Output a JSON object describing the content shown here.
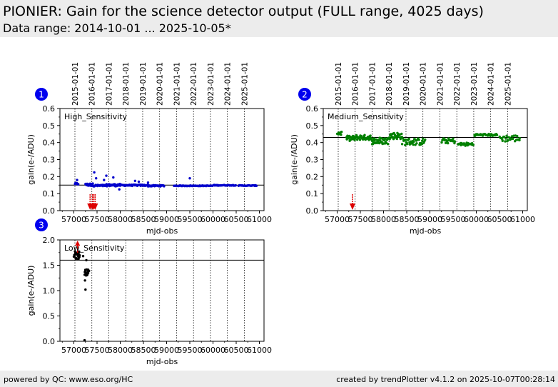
{
  "header": {
    "title": "PIONIER: Gain for the science detector output (FULL range, 4025 days)",
    "subtitle": "Data range: 2014-10-01 ... 2025-10-05*"
  },
  "footer": {
    "left": "powered by QC: www.eso.org/HC",
    "right": "created by trendPlotter v4.1.2 on 2025-10-07T00:28:14"
  },
  "chart_data": [
    {
      "type": "scatter",
      "badge": "1",
      "label": "High_Sensitivity",
      "xlabel": "mjd-obs",
      "ylabel": "gain(e-/ADU)",
      "xlim": [
        56700,
        61100
      ],
      "ylim": [
        0,
        0.6
      ],
      "xticks": [
        57000,
        57500,
        58000,
        58500,
        59000,
        59500,
        60000,
        60500,
        61000
      ],
      "yticks": [
        0.0,
        0.1,
        0.2,
        0.3,
        0.4,
        0.5,
        0.6
      ],
      "ytick_labels": [
        "0.0",
        "0.1",
        "0.2",
        "0.3",
        "0.4",
        "0.5",
        "0.6"
      ],
      "reference_line": 0.15,
      "point_color": "#0000cc",
      "year_lines": [
        {
          "mjd": 57023,
          "label": "2015-01-01"
        },
        {
          "mjd": 57388,
          "label": "2016-01-01"
        },
        {
          "mjd": 57754,
          "label": "2017-01-01"
        },
        {
          "mjd": 58119,
          "label": "2018-01-01"
        },
        {
          "mjd": 58484,
          "label": "2019-01-01"
        },
        {
          "mjd": 58849,
          "label": "2020-01-01"
        },
        {
          "mjd": 59215,
          "label": "2021-01-01"
        },
        {
          "mjd": 59580,
          "label": "2022-01-01"
        },
        {
          "mjd": 59945,
          "label": "2023-01-01"
        },
        {
          "mjd": 60310,
          "label": "2024-01-01"
        },
        {
          "mjd": 60676,
          "label": "2025-01-01"
        }
      ],
      "segments": [
        {
          "x0": 57020,
          "x1": 57100,
          "y": 0.158,
          "jitter": 0.005,
          "n": 8
        },
        {
          "x0": 57250,
          "x1": 57420,
          "y": 0.152,
          "jitter": 0.008,
          "n": 22
        },
        {
          "x0": 57420,
          "x1": 57700,
          "y": 0.147,
          "jitter": 0.005,
          "n": 30
        },
        {
          "x0": 57700,
          "x1": 58000,
          "y": 0.15,
          "jitter": 0.007,
          "n": 28
        },
        {
          "x0": 58000,
          "x1": 58600,
          "y": 0.149,
          "jitter": 0.004,
          "n": 48
        },
        {
          "x0": 58600,
          "x1": 58950,
          "y": 0.146,
          "jitter": 0.004,
          "n": 28
        },
        {
          "x0": 59150,
          "x1": 59600,
          "y": 0.146,
          "jitter": 0.002,
          "n": 28
        },
        {
          "x0": 59600,
          "x1": 60000,
          "y": 0.146,
          "jitter": 0.002,
          "n": 26
        },
        {
          "x0": 60000,
          "x1": 60500,
          "y": 0.149,
          "jitter": 0.002,
          "n": 34
        },
        {
          "x0": 60550,
          "x1": 60950,
          "y": 0.147,
          "jitter": 0.002,
          "n": 28
        }
      ],
      "points": [
        {
          "x": 57070,
          "y": 0.18
        },
        {
          "x": 57440,
          "y": 0.225
        },
        {
          "x": 57480,
          "y": 0.19
        },
        {
          "x": 57650,
          "y": 0.18
        },
        {
          "x": 57700,
          "y": 0.205
        },
        {
          "x": 57850,
          "y": 0.195
        },
        {
          "x": 57980,
          "y": 0.125
        },
        {
          "x": 58320,
          "y": 0.175
        },
        {
          "x": 58400,
          "y": 0.17
        },
        {
          "x": 58600,
          "y": 0.165
        },
        {
          "x": 59500,
          "y": 0.19
        }
      ],
      "outlier_arrows": [
        57350,
        57400,
        57430,
        57460
      ]
    },
    {
      "type": "scatter",
      "badge": "2",
      "label": "Medium_Sensitivity",
      "xlabel": "mjd-obs",
      "ylabel": "gain(e-/ADU)",
      "xlim": [
        56700,
        61100
      ],
      "ylim": [
        0,
        0.6
      ],
      "xticks": [
        57000,
        57500,
        58000,
        58500,
        59000,
        59500,
        60000,
        60500,
        61000
      ],
      "yticks": [
        0.0,
        0.1,
        0.2,
        0.3,
        0.4,
        0.5,
        0.6
      ],
      "ytick_labels": [
        "0.0",
        "0.1",
        "0.2",
        "0.3",
        "0.4",
        "0.5",
        "0.6"
      ],
      "reference_line": 0.43,
      "point_color": "#008000",
      "year_lines": [
        {
          "mjd": 57023,
          "label": "2015-01-01"
        },
        {
          "mjd": 57388,
          "label": "2016-01-01"
        },
        {
          "mjd": 57754,
          "label": "2017-01-01"
        },
        {
          "mjd": 58119,
          "label": "2018-01-01"
        },
        {
          "mjd": 58484,
          "label": "2019-01-01"
        },
        {
          "mjd": 58849,
          "label": "2020-01-01"
        },
        {
          "mjd": 59215,
          "label": "2021-01-01"
        },
        {
          "mjd": 59580,
          "label": "2022-01-01"
        },
        {
          "mjd": 59945,
          "label": "2023-01-01"
        },
        {
          "mjd": 60310,
          "label": "2024-01-01"
        },
        {
          "mjd": 60676,
          "label": "2025-01-01"
        }
      ],
      "segments": [
        {
          "x0": 57000,
          "x1": 57100,
          "y": 0.455,
          "jitter": 0.012,
          "n": 10
        },
        {
          "x0": 57200,
          "x1": 57400,
          "y": 0.425,
          "jitter": 0.015,
          "n": 22
        },
        {
          "x0": 57400,
          "x1": 57720,
          "y": 0.43,
          "jitter": 0.015,
          "n": 34
        },
        {
          "x0": 57720,
          "x1": 58100,
          "y": 0.41,
          "jitter": 0.02,
          "n": 42
        },
        {
          "x0": 58100,
          "x1": 58400,
          "y": 0.44,
          "jitter": 0.02,
          "n": 34
        },
        {
          "x0": 58400,
          "x1": 58900,
          "y": 0.405,
          "jitter": 0.02,
          "n": 42
        },
        {
          "x0": 59250,
          "x1": 59550,
          "y": 0.41,
          "jitter": 0.015,
          "n": 22
        },
        {
          "x0": 59600,
          "x1": 59950,
          "y": 0.39,
          "jitter": 0.01,
          "n": 22
        },
        {
          "x0": 59950,
          "x1": 60450,
          "y": 0.445,
          "jitter": 0.006,
          "n": 32
        },
        {
          "x0": 60500,
          "x1": 60950,
          "y": 0.425,
          "jitter": 0.02,
          "n": 28
        }
      ],
      "points": [],
      "outlier_arrows": [
        57330
      ]
    },
    {
      "type": "scatter",
      "badge": "3",
      "label": "Low_Sensitivity",
      "xlabel": "mjd-obs",
      "ylabel": "gain(e-/ADU)",
      "xlim": [
        56700,
        61100
      ],
      "ylim": [
        0,
        2.0
      ],
      "xticks": [
        57000,
        57500,
        58000,
        58500,
        59000,
        59500,
        60000,
        60500,
        61000
      ],
      "yticks": [
        0.0,
        0.5,
        1.0,
        1.5,
        2.0
      ],
      "ytick_labels": [
        "0.0",
        "0.5",
        "1.0",
        "1.5",
        "2.0"
      ],
      "reference_line": 1.6,
      "point_color": "#000000",
      "year_lines": [
        {
          "mjd": 57023
        },
        {
          "mjd": 57388
        },
        {
          "mjd": 57754
        },
        {
          "mjd": 58119
        },
        {
          "mjd": 58484
        },
        {
          "mjd": 58849
        },
        {
          "mjd": 59215
        },
        {
          "mjd": 59580
        },
        {
          "mjd": 59945
        },
        {
          "mjd": 60310
        },
        {
          "mjd": 60676
        }
      ],
      "segments": [
        {
          "x0": 57000,
          "x1": 57130,
          "y": 1.7,
          "jitter": 0.08,
          "n": 22
        },
        {
          "x0": 57230,
          "x1": 57330,
          "y": 1.36,
          "jitter": 0.06,
          "n": 18
        }
      ],
      "points": [
        {
          "x": 57200,
          "y": 1.68
        },
        {
          "x": 57250,
          "y": 1.02
        },
        {
          "x": 57270,
          "y": 1.6
        },
        {
          "x": 57240,
          "y": 1.2
        },
        {
          "x": 57300,
          "y": 1.4
        },
        {
          "x": 57230,
          "y": 0.02
        }
      ],
      "outlier_arrows": [
        57080
      ]
    }
  ]
}
